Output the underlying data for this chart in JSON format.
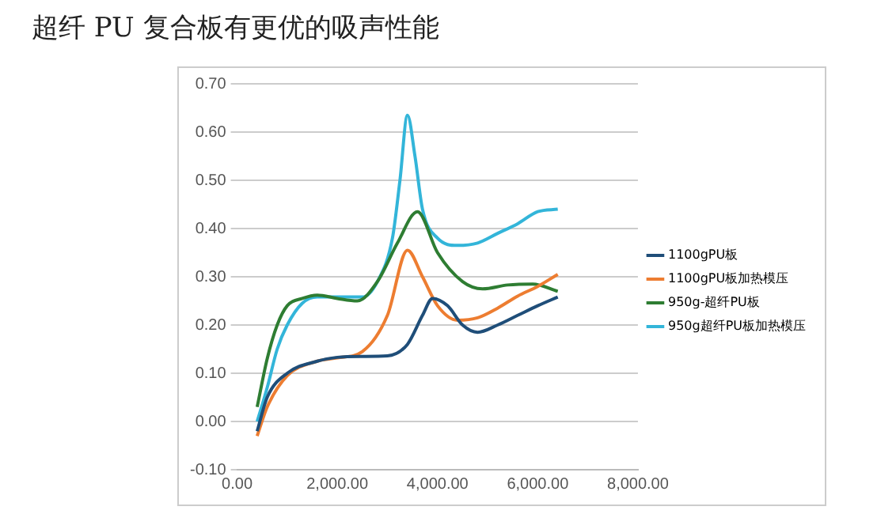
{
  "chart_data": {
    "type": "line",
    "title": "超纤 PU 复合板有更优的吸声性能",
    "xlim": [
      0,
      8000
    ],
    "xticks": [
      {
        "value": 0,
        "label": "0.00"
      },
      {
        "value": 2000,
        "label": "2,000.00"
      },
      {
        "value": 4000,
        "label": "4,000.00"
      },
      {
        "value": 6000,
        "label": "6,000.00"
      },
      {
        "value": 8000,
        "label": "8,000.00"
      }
    ],
    "ylim": [
      -0.1,
      0.7
    ],
    "yticks": [
      {
        "value": -0.1,
        "label": "-0.10"
      },
      {
        "value": 0,
        "label": "0.00"
      },
      {
        "value": 0.1,
        "label": "0.10"
      },
      {
        "value": 0.2,
        "label": "0.20"
      },
      {
        "value": 0.3,
        "label": "0.30"
      },
      {
        "value": 0.4,
        "label": "0.40"
      },
      {
        "value": 0.5,
        "label": "0.50"
      },
      {
        "value": 0.6,
        "label": "0.60"
      },
      {
        "value": 0.7,
        "label": "0.70"
      }
    ],
    "grid": "y",
    "legend": "right",
    "marker": "none",
    "line_style": "solid",
    "series": [
      {
        "name": "1100gPU板",
        "color": "#1f4e79",
        "x": [
          400,
          600,
          1000,
          1600,
          2000,
          2500,
          3000,
          3400,
          3700,
          3900,
          4200,
          4500,
          4800,
          5200,
          5600,
          6000,
          6400
        ],
        "values": [
          -0.02,
          0.05,
          0.1,
          0.125,
          0.133,
          0.135,
          0.136,
          0.16,
          0.22,
          0.255,
          0.24,
          0.2,
          0.185,
          0.2,
          0.22,
          0.24,
          0.258
        ]
      },
      {
        "name": "1100gPU板加热模压",
        "color": "#ed7d31",
        "x": [
          400,
          600,
          1000,
          1600,
          2000,
          2500,
          3000,
          3400,
          3700,
          4000,
          4400,
          4800,
          5200,
          5600,
          6000,
          6400
        ],
        "values": [
          -0.03,
          0.03,
          0.095,
          0.125,
          0.132,
          0.145,
          0.22,
          0.355,
          0.3,
          0.24,
          0.21,
          0.215,
          0.235,
          0.26,
          0.28,
          0.305
        ]
      },
      {
        "name": "950g-超纤PU板",
        "color": "#2e7d32",
        "x": [
          400,
          600,
          800,
          1000,
          1300,
          1600,
          2000,
          2400,
          2800,
          3200,
          3600,
          4000,
          4500,
          4900,
          5400,
          5900,
          6400
        ],
        "values": [
          0.03,
          0.13,
          0.2,
          0.24,
          0.255,
          0.262,
          0.255,
          0.25,
          0.29,
          0.37,
          0.435,
          0.35,
          0.29,
          0.275,
          0.283,
          0.285,
          0.27
        ]
      },
      {
        "name": "950g超纤PU板加热模压",
        "color": "#33b5d9",
        "x": [
          400,
          600,
          800,
          1000,
          1300,
          1600,
          2000,
          2500,
          2800,
          3100,
          3250,
          3400,
          3550,
          3700,
          4000,
          4400,
          4800,
          5200,
          5600,
          6000,
          6400
        ],
        "values": [
          0,
          0.07,
          0.15,
          0.2,
          0.245,
          0.258,
          0.258,
          0.258,
          0.29,
          0.38,
          0.5,
          0.635,
          0.55,
          0.44,
          0.38,
          0.365,
          0.37,
          0.39,
          0.41,
          0.435,
          0.44
        ]
      }
    ]
  }
}
